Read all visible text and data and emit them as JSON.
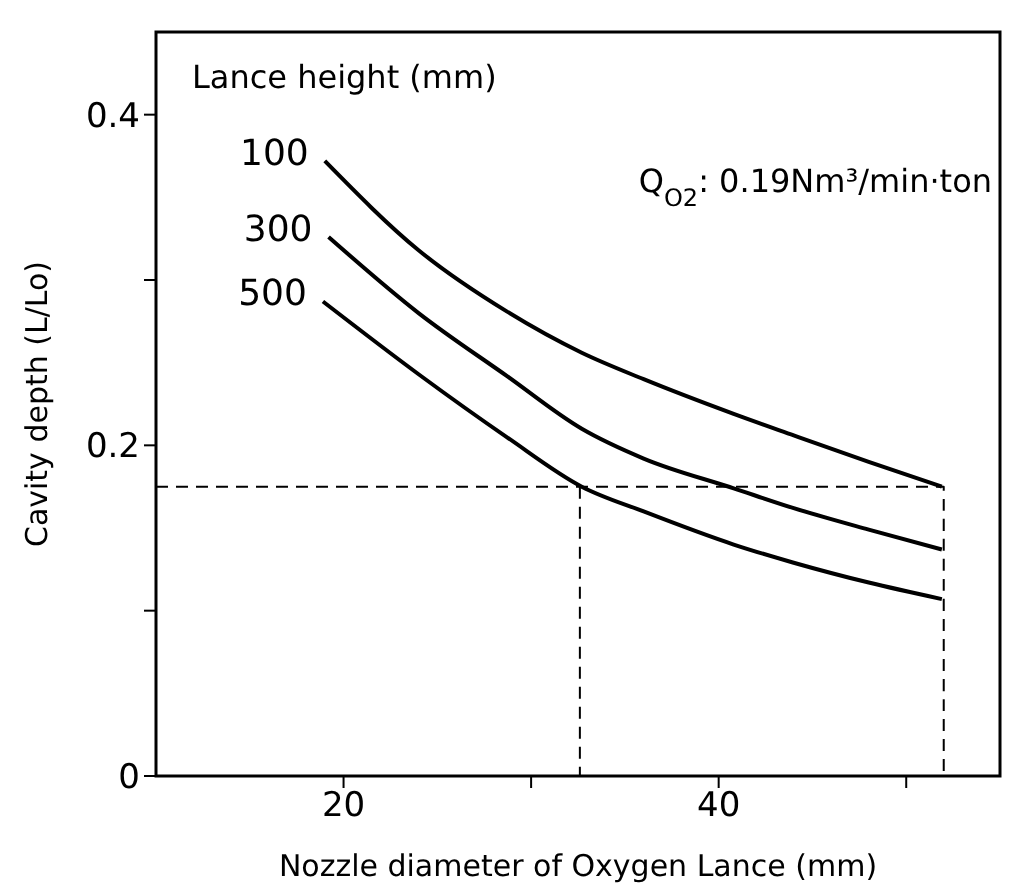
{
  "chart_data": {
    "type": "line",
    "xlabel": "Nozzle diameter of Oxygen Lance (mm)",
    "ylabel": "Cavity depth (L/Lo)",
    "legend_title": "Lance height (mm)",
    "annotations": [
      "Q$_{O2}$: 0.19Nm³/min·ton"
    ],
    "xlim": [
      10,
      55
    ],
    "xticks": [
      20,
      {
        "value": 30,
        "label": null
      },
      40,
      {
        "value": 50,
        "label": null
      }
    ],
    "ylim": [
      0,
      0.45
    ],
    "yticks": [
      0,
      {
        "value": 0.1,
        "label": null
      },
      0.2,
      {
        "value": 0.3,
        "label": null
      },
      0.4
    ],
    "grid": false,
    "legend": false,
    "marker": "none",
    "line_style": "solid",
    "series": [
      {
        "name": "100",
        "color": "#000000",
        "x": [
          19,
          24,
          28.7,
          32.7,
          36,
          40.8,
          44,
          48,
          51.9
        ],
        "values": [
          0.372,
          0.318,
          0.281,
          0.256,
          0.24,
          0.219,
          0.206,
          0.19,
          0.175
        ]
      },
      {
        "name": "300",
        "color": "#000000",
        "x": [
          19.2,
          24,
          28.7,
          32.7,
          36,
          40.8,
          44,
          48,
          51.9
        ],
        "values": [
          0.326,
          0.28,
          0.242,
          0.21,
          0.192,
          0.174,
          0.162,
          0.149,
          0.137
        ]
      },
      {
        "name": "500",
        "color": "#000000",
        "x": [
          18.9,
          24,
          28.7,
          32.7,
          36,
          40.8,
          44,
          48,
          51.9
        ],
        "values": [
          0.287,
          0.243,
          0.205,
          0.175,
          0.16,
          0.14,
          0.129,
          0.117,
          0.107
        ]
      },
      {
        "color": "#000000",
        "line_style": "dashed",
        "x": [
          10,
          52,
          52
        ],
        "values": [
          0.175,
          0.175,
          0
        ]
      },
      {
        "color": "#000000",
        "line_style": "dashed",
        "x": [
          32.6,
          32.6
        ],
        "values": [
          0.175,
          0
        ]
      }
    ]
  }
}
